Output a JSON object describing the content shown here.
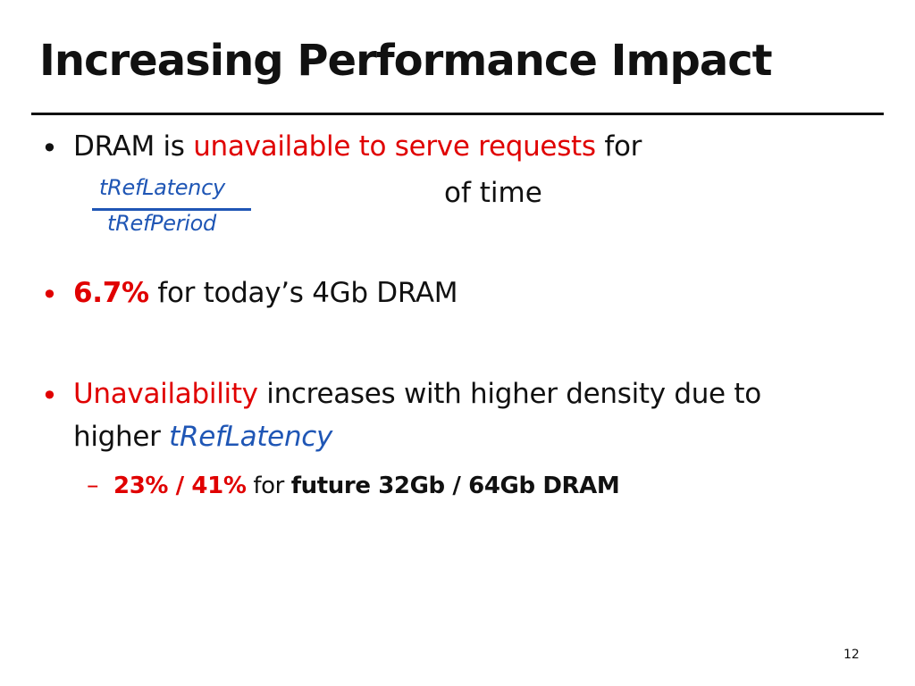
{
  "slide": {
    "title": "Increasing Performance Impact",
    "page_number": "12",
    "bullets": [
      {
        "marker": "•",
        "parts": {
          "p1": "DRAM is ",
          "p2_red": "unavailable to serve requests",
          "p3": " for"
        },
        "fraction": {
          "numerator": "tRefLatency",
          "denominator": "tRefPeriod"
        },
        "suffix": "of time"
      },
      {
        "marker": "•",
        "parts": {
          "p1_red_bold": "6.7%",
          "p2": " for today’s 4Gb DRAM"
        }
      },
      {
        "marker": "•",
        "parts": {
          "p1_red": "Unavailability",
          "p2": " increases with higher density due to",
          "p3": "higher ",
          "p4_blue": "tRefLatency"
        },
        "sub": {
          "marker": "–",
          "p1_red_bold": "23% / 41%",
          "p2": " for ",
          "p3_bold": "future 32Gb / 64Gb DRAM"
        }
      }
    ]
  }
}
